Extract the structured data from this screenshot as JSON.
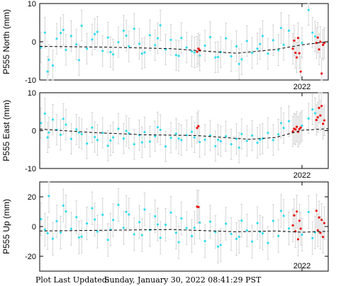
{
  "footer": {
    "label": "Plot Last Updated:",
    "value": "Sunday, January 30, 2022 08:41:29 PST"
  },
  "colors": {
    "points": "#33ddee",
    "recent_points": "#ee1111",
    "error_bars": "#cccccc",
    "trend": "#000000"
  },
  "chart_data": [
    {
      "type": "scatter",
      "ylabel": "P555 North (mm)",
      "ylim": [
        -10,
        10
      ],
      "yticks": [
        -10,
        0,
        10
      ],
      "xlim": [
        2020.0,
        2022.2
      ],
      "xticks": [
        2022
      ],
      "xtick_labels": [
        "2022"
      ],
      "grid": false,
      "error_bar_mm": 4,
      "trend": {
        "x": [
          2020.0,
          2020.5,
          2021.0,
          2021.2,
          2021.5,
          2021.8,
          2022.0,
          2022.2
        ],
        "y": [
          -1.2,
          -1.4,
          -1.8,
          -2.3,
          -3.0,
          -2.0,
          -0.8,
          0.0
        ]
      },
      "series": [
        {
          "x": [
            2020.01,
            2020.04,
            2020.07,
            2020.1,
            2020.13,
            2020.16,
            2020.2,
            2020.24,
            2020.28,
            2020.32,
            2020.36,
            2020.4,
            2020.44,
            2020.48,
            2020.52,
            2020.56,
            2020.6,
            2020.64,
            2020.68,
            2020.72,
            2020.76,
            2020.8,
            2020.84,
            2020.88,
            2020.92,
            2020.96,
            2021.0,
            2021.04,
            2021.08,
            2021.12,
            2021.16,
            2021.22,
            2021.26,
            2021.3,
            2021.34,
            2021.38,
            2021.42,
            2021.46,
            2021.5,
            2021.54,
            2021.58,
            2021.62,
            2021.66,
            2021.7,
            2021.74,
            2021.78,
            2021.82,
            2021.86,
            2021.9,
            2022.0,
            2022.05,
            2022.1,
            2020.06,
            2020.18,
            2020.3,
            2020.42,
            2020.54,
            2020.66,
            2020.78,
            2020.9,
            2021.06,
            2021.18,
            2021.36,
            2021.52,
            2021.68,
            2021.84,
            2022.08
          ],
          "y": [
            -1.5,
            2.4,
            -4.7,
            -6.2,
            0.8,
            2.3,
            -2.1,
            1.5,
            -0.7,
            4.2,
            -1.8,
            0.6,
            2.6,
            -2.4,
            1.1,
            -3.3,
            -0.1,
            2.9,
            -1.2,
            3.4,
            -0.5,
            -2.8,
            1.7,
            -0.9,
            4.3,
            -2.0,
            0.5,
            -3.5,
            1.0,
            -1.5,
            -2.5,
            -3.6,
            -1.0,
            1.2,
            -4.1,
            -2.7,
            0.9,
            -3.8,
            -1.2,
            -4.6,
            0.2,
            -2.9,
            -1.8,
            1.5,
            -3.1,
            0.4,
            -2.2,
            -0.8,
            2.9,
            -0.3,
            8.3,
            1.4,
            -7.8,
            3.1,
            -4.8,
            2.0,
            -2.7,
            1.6,
            -3.1,
            0.9,
            -3.7,
            -2.8,
            -4.0,
            -5.8,
            -0.6,
            3.6,
            2.4
          ]
        },
        {
          "recent": true,
          "x": [
            2021.93,
            2021.94,
            2021.95,
            2021.96,
            2021.97,
            2021.98,
            2021.99,
            2022.11,
            2022.12,
            2022.13,
            2022.14,
            2022.15,
            2022.16,
            2022.17,
            2021.2,
            2021.21,
            2021.22
          ],
          "y": [
            -1.8,
            0.3,
            -2.9,
            -4.1,
            1.0,
            -3.0,
            -7.8,
            -0.3,
            1.1,
            -2.0,
            0.0,
            -8.3,
            -0.8,
            -0.3,
            -2.6,
            -1.8,
            -2.2
          ]
        }
      ]
    },
    {
      "type": "scatter",
      "ylabel": "P555 East (mm)",
      "ylim": [
        -10,
        10
      ],
      "yticks": [
        -10,
        0,
        10
      ],
      "xlim": [
        2020.0,
        2022.2
      ],
      "xticks": [
        2022
      ],
      "xtick_labels": [
        "2022"
      ],
      "grid": false,
      "error_bar_mm": 4,
      "trend": {
        "x": [
          2020.0,
          2020.4,
          2020.8,
          2021.2,
          2021.6,
          2021.8,
          2022.0,
          2022.2
        ],
        "y": [
          0.4,
          -0.5,
          -1.1,
          -1.3,
          -2.3,
          -1.8,
          0.1,
          0.5
        ]
      },
      "series": [
        {
          "x": [
            2020.01,
            2020.04,
            2020.07,
            2020.1,
            2020.13,
            2020.16,
            2020.2,
            2020.24,
            2020.28,
            2020.32,
            2020.36,
            2020.4,
            2020.44,
            2020.48,
            2020.52,
            2020.56,
            2020.6,
            2020.64,
            2020.68,
            2020.72,
            2020.76,
            2020.8,
            2020.84,
            2020.88,
            2020.92,
            2020.96,
            2021.0,
            2021.04,
            2021.08,
            2021.12,
            2021.16,
            2021.22,
            2021.26,
            2021.3,
            2021.34,
            2021.38,
            2021.42,
            2021.46,
            2021.5,
            2021.54,
            2021.58,
            2021.62,
            2021.66,
            2021.7,
            2021.74,
            2021.78,
            2021.82,
            2021.86,
            2021.9,
            2022.0,
            2022.05,
            2022.1,
            2020.06,
            2020.18,
            2020.3,
            2020.42,
            2020.54,
            2020.66,
            2020.78,
            2020.9,
            2021.06,
            2021.18,
            2021.36,
            2021.52,
            2021.68,
            2021.84,
            2022.08
          ],
          "y": [
            2.0,
            4.5,
            -0.5,
            2.9,
            0.2,
            -1.1,
            1.6,
            -2.2,
            0.3,
            -0.9,
            -3.4,
            0.8,
            -2.5,
            -0.6,
            -4.0,
            -1.8,
            0.5,
            -2.1,
            -0.7,
            -3.6,
            -1.2,
            -0.4,
            -2.9,
            -1.5,
            0.2,
            -4.2,
            -1.9,
            -0.8,
            -2.5,
            -1.2,
            -0.3,
            -3.0,
            -2.4,
            -1.3,
            -4.1,
            -2.8,
            -1.5,
            -3.6,
            -2.2,
            -0.9,
            -2.7,
            -1.3,
            -3.2,
            -2.1,
            -0.6,
            -2.5,
            -1.0,
            0.7,
            2.5,
            1.3,
            3.2,
            4.6,
            -1.8,
            3.1,
            -0.5,
            -1.7,
            -2.6,
            -0.1,
            -3.1,
            0.9,
            -2.1,
            -1.8,
            -2.4,
            -4.5,
            -2.4,
            2.0,
            5.6
          ]
        },
        {
          "recent": true,
          "x": [
            2021.2,
            2021.21,
            2021.93,
            2021.94,
            2021.95,
            2021.96,
            2021.97,
            2021.98,
            2021.99,
            2022.11,
            2022.12,
            2022.13,
            2022.14,
            2022.15,
            2022.16,
            2022.17
          ],
          "y": [
            0.7,
            1.2,
            -0.2,
            0.5,
            0.3,
            1.0,
            -0.3,
            0.4,
            0.8,
            2.8,
            3.5,
            6.0,
            4.0,
            6.5,
            1.8,
            2.7
          ]
        }
      ]
    },
    {
      "type": "scatter",
      "ylabel": "P555 Up (mm)",
      "ylim": [
        -30,
        30
      ],
      "yticks": [
        -20,
        0,
        20
      ],
      "xlim": [
        2020.0,
        2022.2
      ],
      "xticks": [
        2022
      ],
      "xtick_labels": [
        "2022"
      ],
      "grid": false,
      "error_bar_mm": 11,
      "trend": {
        "x": [
          2020.0,
          2020.5,
          2021.0,
          2021.5,
          2021.8,
          2022.0,
          2022.2
        ],
        "y": [
          -3.0,
          -2.5,
          -2.0,
          -3.5,
          -3.0,
          -3.8,
          -3.2
        ]
      },
      "series": [
        {
          "x": [
            2020.01,
            2020.04,
            2020.07,
            2020.1,
            2020.13,
            2020.16,
            2020.2,
            2020.24,
            2020.28,
            2020.32,
            2020.36,
            2020.4,
            2020.44,
            2020.48,
            2020.52,
            2020.56,
            2020.6,
            2020.64,
            2020.68,
            2020.72,
            2020.76,
            2020.8,
            2020.84,
            2020.88,
            2020.92,
            2020.96,
            2021.0,
            2021.04,
            2021.08,
            2021.12,
            2021.16,
            2021.22,
            2021.26,
            2021.3,
            2021.34,
            2021.38,
            2021.42,
            2021.46,
            2021.5,
            2021.54,
            2021.58,
            2021.62,
            2021.66,
            2021.7,
            2021.74,
            2021.78,
            2021.82,
            2021.86,
            2021.9,
            2022.0,
            2022.05,
            2022.1,
            2020.06,
            2020.18,
            2020.3,
            2020.42,
            2020.54,
            2020.66,
            2020.78,
            2020.9,
            2021.06,
            2021.18,
            2021.36,
            2021.52,
            2021.68,
            2021.84,
            2022.08
          ],
          "y": [
            5.0,
            -2.1,
            20.5,
            -8.2,
            3.6,
            -4.0,
            10.2,
            -1.5,
            6.3,
            -6.8,
            2.1,
            12.3,
            -3.4,
            7.9,
            -9.0,
            4.4,
            14.6,
            -0.9,
            8.1,
            -5.2,
            3.0,
            11.5,
            -2.3,
            6.9,
            -7.6,
            1.2,
            9.4,
            -4.1,
            5.5,
            -1.1,
            -6.5,
            2.7,
            -9.8,
            3.3,
            -3.7,
            -12.4,
            1.9,
            -5.0,
            -8.3,
            4.0,
            -2.6,
            -10.1,
            2.3,
            -4.6,
            -11.0,
            3.8,
            -6.3,
            7.2,
            -1.3,
            -5.5,
            9.8,
            -3.9,
            -4.5,
            14.1,
            -7.3,
            4.7,
            -2.0,
            9.9,
            -5.8,
            1.4,
            -10.5,
            -0.8,
            -13.5,
            -6.9,
            -3.5,
            10.5,
            -7.8
          ]
        },
        {
          "recent": true,
          "x": [
            2021.2,
            2021.21,
            2021.93,
            2021.94,
            2021.95,
            2021.96,
            2021.97,
            2021.98,
            2021.99,
            2022.11,
            2022.12,
            2022.13,
            2022.14,
            2022.15,
            2022.16,
            2022.17
          ],
          "y": [
            13.4,
            13.1,
            0.8,
            7.5,
            -3.2,
            10.1,
            -8.6,
            3.9,
            -1.4,
            10.6,
            -2.5,
            6.1,
            -4.2,
            4.5,
            -7.0,
            2.3
          ]
        }
      ]
    }
  ]
}
